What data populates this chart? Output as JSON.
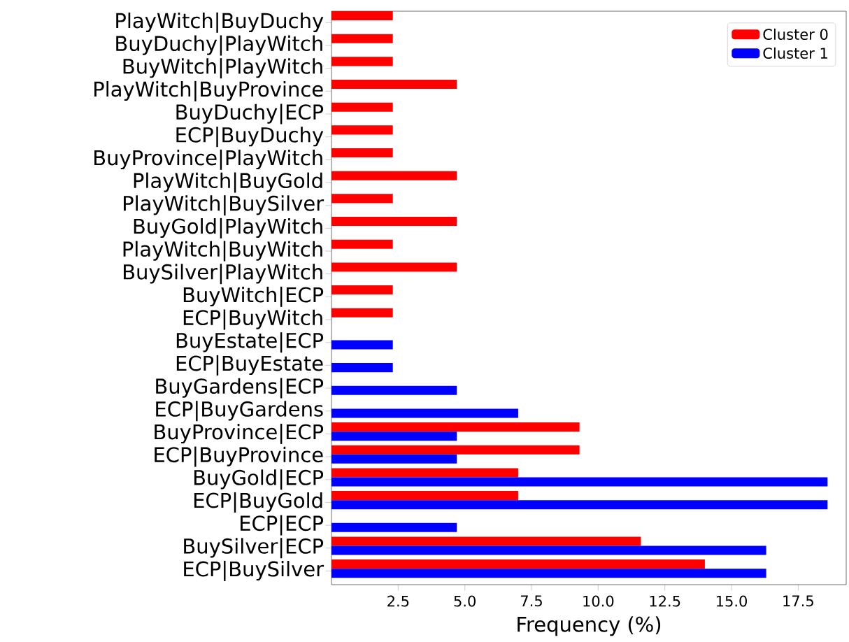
{
  "chart_data": {
    "type": "bar",
    "orientation": "horizontal",
    "xlabel": "Frequency (%)",
    "categories": [
      "PlayWitch|BuyDuchy",
      "BuyDuchy|PlayWitch",
      "BuyWitch|PlayWitch",
      "PlayWitch|BuyProvince",
      "BuyDuchy|ECP",
      "ECP|BuyDuchy",
      "BuyProvince|PlayWitch",
      "PlayWitch|BuyGold",
      "PlayWitch|BuySilver",
      "BuyGold|PlayWitch",
      "PlayWitch|BuyWitch",
      "BuySilver|PlayWitch",
      "BuyWitch|ECP",
      "ECP|BuyWitch",
      "BuyEstate|ECP",
      "ECP|BuyEstate",
      "BuyGardens|ECP",
      "ECP|BuyGardens",
      "BuyProvince|ECP",
      "ECP|BuyProvince",
      "BuyGold|ECP",
      "ECP|BuyGold",
      "ECP|ECP",
      "BuySilver|ECP",
      "ECP|BuySilver"
    ],
    "series": [
      {
        "name": "Cluster 0",
        "color": "#ff0000",
        "values": [
          2.3,
          2.3,
          2.3,
          4.7,
          2.3,
          2.3,
          2.3,
          4.7,
          2.3,
          4.7,
          2.3,
          4.7,
          2.3,
          2.3,
          null,
          null,
          null,
          null,
          9.3,
          9.3,
          7.0,
          7.0,
          null,
          11.6,
          14.0
        ]
      },
      {
        "name": "Cluster 1",
        "color": "#0000ff",
        "values": [
          null,
          null,
          null,
          null,
          null,
          null,
          null,
          null,
          null,
          null,
          null,
          null,
          null,
          null,
          2.3,
          2.3,
          4.7,
          7.0,
          4.7,
          4.7,
          18.6,
          18.6,
          4.7,
          16.3,
          16.3
        ]
      }
    ],
    "xlim": [
      0,
      19.3
    ],
    "xticks": [
      2.5,
      {
        "value": 5,
        "label": "5.0"
      },
      7.5,
      {
        "value": 10,
        "label": "10.0"
      },
      12.5,
      {
        "value": 15,
        "label": "15.0"
      },
      17.5
    ],
    "legend": "top right"
  }
}
